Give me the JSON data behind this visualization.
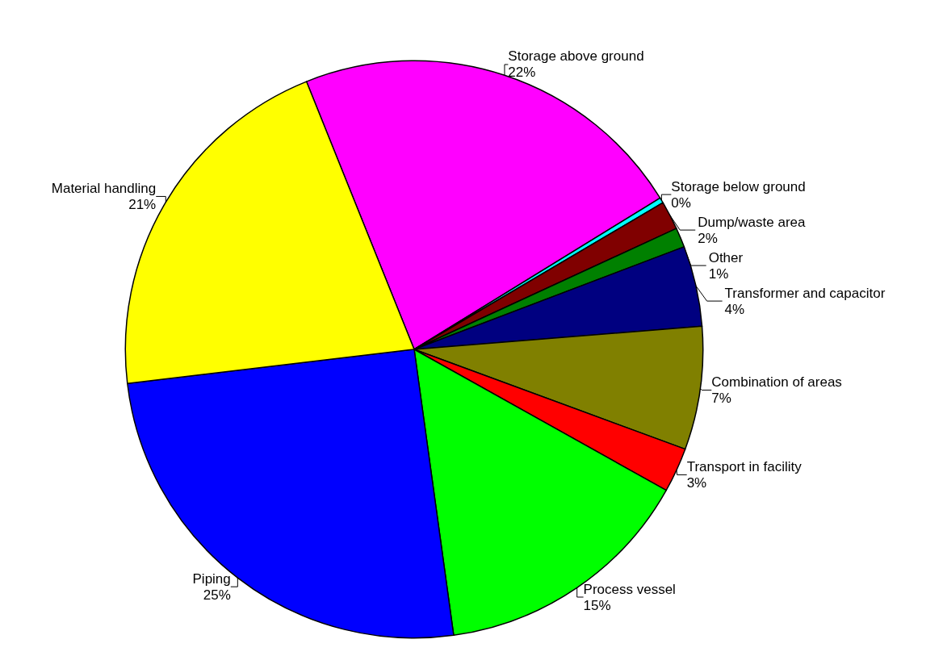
{
  "chart_data": {
    "type": "pie",
    "categories": [
      "Storage above ground",
      "Storage below ground",
      "Dump/waste area",
      "Other",
      "Transformer and capacitor",
      "Combination of areas",
      "Transport in facility",
      "Process vessel",
      "Piping",
      "Material handling"
    ],
    "values": [
      22.3,
      0.3,
      1.6,
      1.1,
      4.5,
      6.9,
      2.5,
      14.7,
      25.3,
      20.8
    ],
    "value_labels": [
      "22%",
      "0%",
      "2%",
      "1%",
      "4%",
      "7%",
      "3%",
      "15%",
      "25%",
      "21%"
    ],
    "colors": [
      "#ff00ff",
      "#00ffff",
      "#800000",
      "#008000",
      "#000080",
      "#808000",
      "#ff0000",
      "#00ff00",
      "#0000ff",
      "#ffff00"
    ]
  }
}
